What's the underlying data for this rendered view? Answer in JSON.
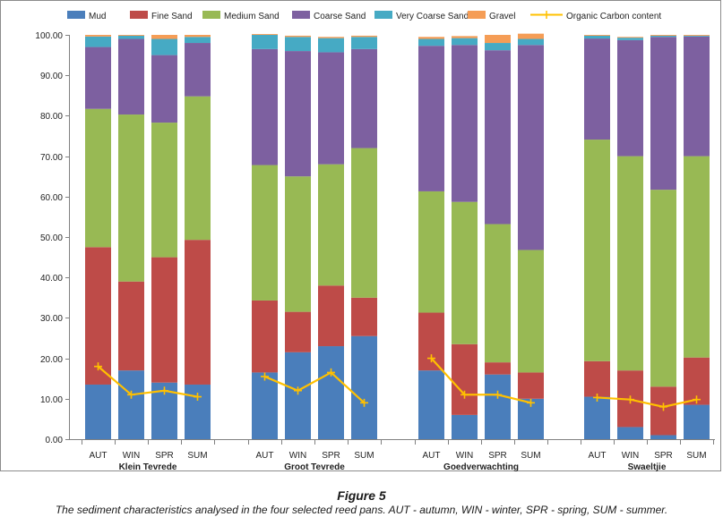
{
  "chart_data": {
    "type": "bar",
    "stacked": true,
    "title": "",
    "xlabel": "",
    "ylabel": "",
    "ylim": [
      0,
      100
    ],
    "ytick_step": 10,
    "ytick_labels": [
      "0.00",
      "10.00",
      "20.00",
      "30.00",
      "40.00",
      "50.00",
      "60.00",
      "70.00",
      "80.00",
      "90.00",
      "100.00"
    ],
    "grid": false,
    "legend_position": "top",
    "groups": [
      {
        "name": "Klein Tevrede",
        "categories": [
          "AUT",
          "WIN",
          "SPR",
          "SUM"
        ]
      },
      {
        "name": "Groot Tevrede",
        "categories": [
          "AUT",
          "WIN",
          "SPR",
          "SUM"
        ]
      },
      {
        "name": "Goedverwachting",
        "categories": [
          "AUT",
          "WIN",
          "SPR",
          "SUM"
        ]
      },
      {
        "name": "Swaeltjie",
        "categories": [
          "AUT",
          "WIN",
          "SPR",
          "SUM"
        ]
      }
    ],
    "series": [
      {
        "name": "Mud",
        "color": "#4a7ebb",
        "values": [
          13.5,
          17.0,
          14.0,
          13.5,
          16.5,
          21.5,
          23.0,
          25.5,
          17.0,
          6.0,
          16.0,
          10.0,
          10.5,
          3.0,
          1.0,
          8.5
        ]
      },
      {
        "name": "Fine Sand",
        "color": "#be4b48",
        "values": [
          34.0,
          22.0,
          31.0,
          35.8,
          17.8,
          10.0,
          15.0,
          9.5,
          14.3,
          17.5,
          3.0,
          6.5,
          8.8,
          14.0,
          12.0,
          11.7
        ]
      },
      {
        "name": "Medium Sand",
        "color": "#98b954",
        "values": [
          34.2,
          41.3,
          33.3,
          35.5,
          33.5,
          33.5,
          30.0,
          37.0,
          30.0,
          35.2,
          34.2,
          30.3,
          54.8,
          53.0,
          48.7,
          49.8
        ]
      },
      {
        "name": "Coarse Sand",
        "color": "#7d60a0",
        "values": [
          15.3,
          18.7,
          16.7,
          13.2,
          28.7,
          31.0,
          27.7,
          24.5,
          36.0,
          38.8,
          43.0,
          50.7,
          25.0,
          28.7,
          37.8,
          29.6
        ]
      },
      {
        "name": "Very Coarse Sand",
        "color": "#46aac4",
        "values": [
          2.6,
          0.8,
          4.0,
          1.5,
          3.5,
          3.5,
          3.5,
          3.0,
          1.7,
          1.7,
          1.8,
          1.5,
          0.7,
          0.6,
          0.3,
          0.2
        ]
      },
      {
        "name": "Gravel",
        "color": "#f59d56",
        "values": [
          0.4,
          0.2,
          1.0,
          0.5,
          0.2,
          0.3,
          0.3,
          0.3,
          0.5,
          0.5,
          2.0,
          1.3,
          0.2,
          0.2,
          0.2,
          0.2
        ]
      }
    ],
    "line_series": {
      "name": "Organic Carbon content",
      "color": "#ffc000",
      "values": [
        18.0,
        11.0,
        12.0,
        10.5,
        15.5,
        12.0,
        16.5,
        9.0,
        20.0,
        11.0,
        11.0,
        9.0,
        10.3,
        9.8,
        8.0,
        9.8
      ]
    }
  },
  "caption": {
    "title": "Figure 5",
    "text": "The sediment characteristics analysed in the four selected reed pans. AUT - autumn, WIN - winter, SPR - spring, SUM - summer."
  }
}
